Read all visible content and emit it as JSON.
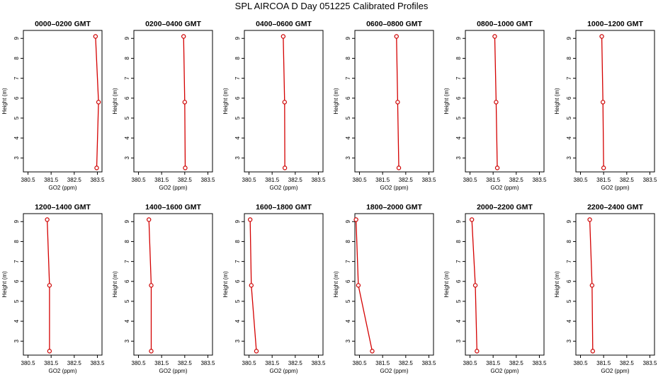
{
  "figure": {
    "title": "SPL AIRCOA D  Day 051225  Calibrated Profiles"
  },
  "chart_data": [
    {
      "type": "line",
      "title": "0000–0200 GMT",
      "xlabel": "GO2 (ppm)",
      "ylabel": "Height (m)",
      "xlim": [
        380.3,
        383.7
      ],
      "ylim": [
        2.3,
        9.4
      ],
      "x_ticks": [
        380.5,
        381.5,
        382.5,
        383.5
      ],
      "y_ticks": [
        3,
        4,
        5,
        6,
        7,
        8,
        9
      ],
      "series": [
        {
          "x": [
            383.42,
            383.55,
            383.47
          ],
          "y": [
            9.1,
            5.8,
            2.5
          ]
        }
      ]
    },
    {
      "type": "line",
      "title": "0200–0400 GMT",
      "xlabel": "GO2 (ppm)",
      "ylabel": "Height (m)",
      "xlim": [
        380.3,
        383.7
      ],
      "ylim": [
        2.3,
        9.4
      ],
      "x_ticks": [
        380.5,
        381.5,
        382.5,
        383.5
      ],
      "y_ticks": [
        3,
        4,
        5,
        6,
        7,
        8,
        9
      ],
      "series": [
        {
          "x": [
            382.45,
            382.5,
            382.52
          ],
          "y": [
            9.1,
            5.8,
            2.5
          ]
        }
      ]
    },
    {
      "type": "line",
      "title": "0400–0600 GMT",
      "xlabel": "GO2 (ppm)",
      "ylabel": "Height (m)",
      "xlim": [
        380.3,
        383.7
      ],
      "ylim": [
        2.3,
        9.4
      ],
      "x_ticks": [
        380.5,
        381.5,
        382.5,
        383.5
      ],
      "y_ticks": [
        3,
        4,
        5,
        6,
        7,
        8,
        9
      ],
      "series": [
        {
          "x": [
            381.98,
            382.04,
            382.05
          ],
          "y": [
            9.1,
            5.8,
            2.5
          ]
        }
      ]
    },
    {
      "type": "line",
      "title": "0600–0800 GMT",
      "xlabel": "GO2 (ppm)",
      "ylabel": "Height (m)",
      "xlim": [
        380.3,
        383.7
      ],
      "ylim": [
        2.3,
        9.4
      ],
      "x_ticks": [
        380.5,
        381.5,
        382.5,
        383.5
      ],
      "y_ticks": [
        3,
        4,
        5,
        6,
        7,
        8,
        9
      ],
      "series": [
        {
          "x": [
            382.1,
            382.15,
            382.2
          ],
          "y": [
            9.1,
            5.8,
            2.5
          ]
        }
      ]
    },
    {
      "type": "line",
      "title": "0800–1000 GMT",
      "xlabel": "GO2 (ppm)",
      "ylabel": "Height (m)",
      "xlim": [
        380.3,
        383.7
      ],
      "ylim": [
        2.3,
        9.4
      ],
      "x_ticks": [
        380.5,
        381.5,
        382.5,
        383.5
      ],
      "y_ticks": [
        3,
        4,
        5,
        6,
        7,
        8,
        9
      ],
      "series": [
        {
          "x": [
            381.57,
            381.63,
            381.68
          ],
          "y": [
            9.1,
            5.8,
            2.5
          ]
        }
      ]
    },
    {
      "type": "line",
      "title": "1000–1200 GMT",
      "xlabel": "GO2 (ppm)",
      "ylabel": "Height (m)",
      "xlim": [
        380.3,
        383.7
      ],
      "ylim": [
        2.3,
        9.4
      ],
      "x_ticks": [
        380.5,
        381.5,
        382.5,
        383.5
      ],
      "y_ticks": [
        3,
        4,
        5,
        6,
        7,
        8,
        9
      ],
      "series": [
        {
          "x": [
            381.42,
            381.47,
            381.5
          ],
          "y": [
            9.1,
            5.8,
            2.5
          ]
        }
      ]
    },
    {
      "type": "line",
      "title": "1200–1400 GMT",
      "xlabel": "GO2 (ppm)",
      "ylabel": "Height (m)",
      "xlim": [
        380.3,
        383.7
      ],
      "ylim": [
        2.3,
        9.4
      ],
      "x_ticks": [
        380.5,
        381.5,
        382.5,
        383.5
      ],
      "y_ticks": [
        3,
        4,
        5,
        6,
        7,
        8,
        9
      ],
      "series": [
        {
          "x": [
            381.33,
            381.43,
            381.43
          ],
          "y": [
            9.1,
            5.8,
            2.5
          ]
        }
      ]
    },
    {
      "type": "line",
      "title": "1400–1600 GMT",
      "xlabel": "GO2 (ppm)",
      "ylabel": "Height (m)",
      "xlim": [
        380.3,
        383.7
      ],
      "ylim": [
        2.3,
        9.4
      ],
      "x_ticks": [
        380.5,
        381.5,
        382.5,
        383.5
      ],
      "y_ticks": [
        3,
        4,
        5,
        6,
        7,
        8,
        9
      ],
      "series": [
        {
          "x": [
            380.95,
            381.05,
            381.05
          ],
          "y": [
            9.1,
            5.8,
            2.5
          ]
        }
      ]
    },
    {
      "type": "line",
      "title": "1600–1800 GMT",
      "xlabel": "GO2 (ppm)",
      "ylabel": "Height (m)",
      "xlim": [
        380.3,
        383.7
      ],
      "ylim": [
        2.3,
        9.4
      ],
      "x_ticks": [
        380.5,
        381.5,
        382.5,
        383.5
      ],
      "y_ticks": [
        3,
        4,
        5,
        6,
        7,
        8,
        9
      ],
      "series": [
        {
          "x": [
            380.55,
            380.6,
            380.82
          ],
          "y": [
            9.1,
            5.8,
            2.5
          ]
        }
      ]
    },
    {
      "type": "line",
      "title": "1800–2000 GMT",
      "xlabel": "GO2 (ppm)",
      "ylabel": "Height (m)",
      "xlim": [
        380.3,
        383.7
      ],
      "ylim": [
        2.3,
        9.4
      ],
      "x_ticks": [
        380.5,
        381.5,
        382.5,
        383.5
      ],
      "y_ticks": [
        3,
        4,
        5,
        6,
        7,
        8,
        9
      ],
      "series": [
        {
          "x": [
            380.35,
            380.45,
            381.05
          ],
          "y": [
            9.1,
            5.8,
            2.5
          ]
        }
      ]
    },
    {
      "type": "line",
      "title": "2000–2200 GMT",
      "xlabel": "GO2 (ppm)",
      "ylabel": "Height (m)",
      "xlim": [
        380.3,
        383.7
      ],
      "ylim": [
        2.3,
        9.4
      ],
      "x_ticks": [
        380.5,
        381.5,
        382.5,
        383.5
      ],
      "y_ticks": [
        3,
        4,
        5,
        6,
        7,
        8,
        9
      ],
      "series": [
        {
          "x": [
            380.58,
            380.73,
            380.8
          ],
          "y": [
            9.1,
            5.8,
            2.5
          ]
        }
      ]
    },
    {
      "type": "line",
      "title": "2200–2400 GMT",
      "xlabel": "GO2 (ppm)",
      "ylabel": "Height (m)",
      "xlim": [
        380.3,
        383.7
      ],
      "ylim": [
        2.3,
        9.4
      ],
      "x_ticks": [
        380.5,
        381.5,
        382.5,
        383.5
      ],
      "y_ticks": [
        3,
        4,
        5,
        6,
        7,
        8,
        9
      ],
      "series": [
        {
          "x": [
            380.9,
            381.0,
            381.03
          ],
          "y": [
            9.1,
            5.8,
            2.5
          ]
        }
      ]
    }
  ],
  "colors": {
    "line": "#d40000",
    "marker": "#cc0000",
    "axes": "#000000"
  }
}
